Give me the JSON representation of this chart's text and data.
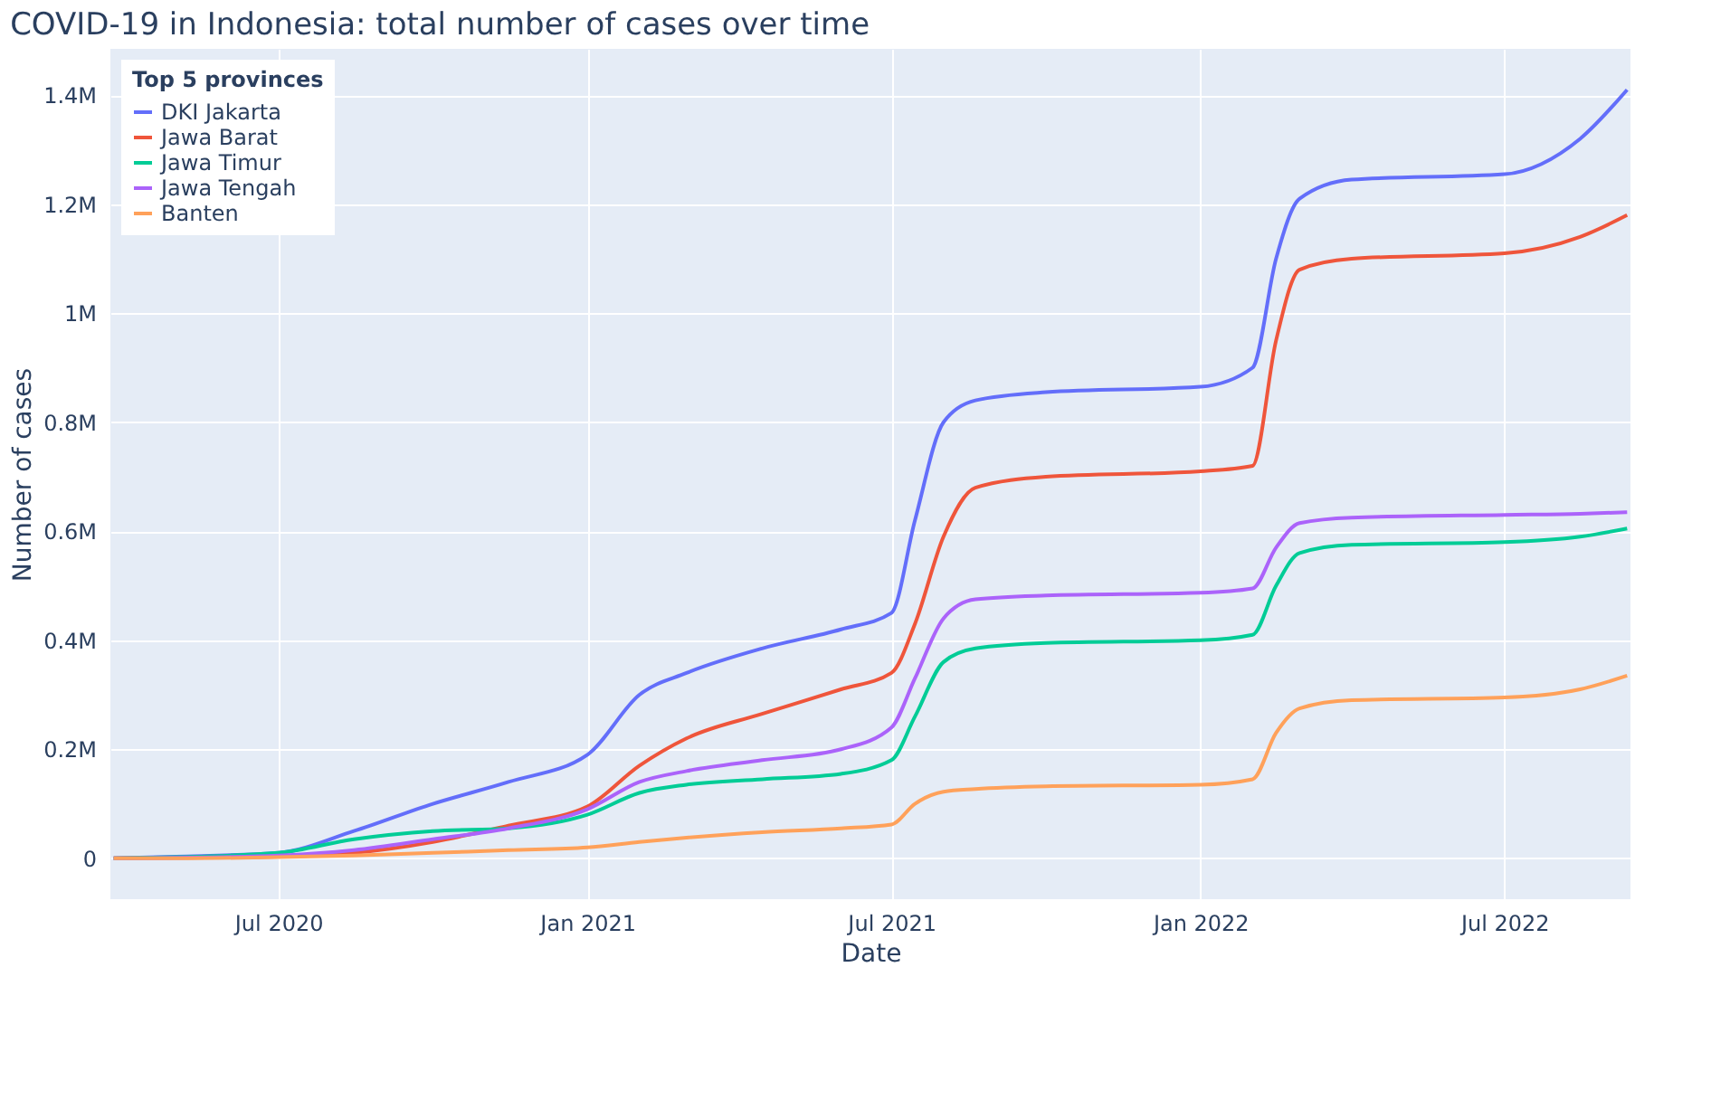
{
  "chart_data": {
    "type": "line",
    "title": "COVID-19 in Indonesia: total number of cases over time",
    "xlabel": "Date",
    "ylabel": "Number of cases",
    "legend_title": "Top 5 provinces",
    "x": [
      "2020-03-25",
      "2020-05-01",
      "2020-07-01",
      "2020-08-15",
      "2020-10-01",
      "2020-11-15",
      "2021-01-01",
      "2021-02-01",
      "2021-03-01",
      "2021-04-15",
      "2021-06-01",
      "2021-07-01",
      "2021-07-15",
      "2021-08-01",
      "2021-08-20",
      "2021-10-01",
      "2022-01-01",
      "2022-02-01",
      "2022-02-15",
      "2022-03-01",
      "2022-04-01",
      "2022-07-01",
      "2022-08-15",
      "2022-09-12"
    ],
    "series": [
      {
        "name": "DKI Jakarta",
        "color": "#636efa",
        "values": [
          0,
          3000,
          10000,
          50000,
          100000,
          140000,
          190000,
          300000,
          340000,
          385000,
          420000,
          450000,
          620000,
          800000,
          840000,
          855000,
          865000,
          900000,
          1100000,
          1210000,
          1245000,
          1255000,
          1320000,
          1410000
        ]
      },
      {
        "name": "Jawa Barat",
        "color": "#ef553b",
        "values": [
          0,
          1000,
          3000,
          10000,
          30000,
          60000,
          95000,
          170000,
          220000,
          265000,
          310000,
          340000,
          430000,
          590000,
          680000,
          700000,
          710000,
          720000,
          950000,
          1080000,
          1100000,
          1110000,
          1140000,
          1180000
        ]
      },
      {
        "name": "Jawa Timur",
        "color": "#00cc96",
        "values": [
          0,
          2000,
          10000,
          35000,
          50000,
          55000,
          80000,
          120000,
          135000,
          145000,
          155000,
          180000,
          260000,
          360000,
          385000,
          395000,
          400000,
          410000,
          500000,
          560000,
          575000,
          580000,
          590000,
          605000
        ]
      },
      {
        "name": "Jawa Tengah",
        "color": "#ab63fa",
        "values": [
          0,
          1000,
          5000,
          15000,
          35000,
          55000,
          90000,
          140000,
          160000,
          180000,
          200000,
          240000,
          330000,
          440000,
          475000,
          482000,
          487000,
          495000,
          570000,
          615000,
          625000,
          630000,
          632000,
          635000
        ]
      },
      {
        "name": "Banten",
        "color": "#ffa15a",
        "values": [
          0,
          0,
          2000,
          5000,
          10000,
          15000,
          20000,
          30000,
          38000,
          48000,
          55000,
          62000,
          100000,
          122000,
          127000,
          132000,
          135000,
          145000,
          230000,
          275000,
          290000,
          295000,
          310000,
          335000
        ]
      }
    ],
    "xlim": [
      "2020-03-23",
      "2022-09-14"
    ],
    "xticks": [
      {
        "value": "2020-07-01",
        "label": "Jul 2020"
      },
      {
        "value": "2021-01-01",
        "label": "Jan 2021"
      },
      {
        "value": "2021-07-01",
        "label": "Jul 2021"
      },
      {
        "value": "2022-01-01",
        "label": "Jan 2022"
      },
      {
        "value": "2022-07-01",
        "label": "Jul 2022"
      }
    ],
    "ylim": [
      -75000,
      1485000
    ],
    "yticks": [
      {
        "value": 0,
        "label": "0"
      },
      {
        "value": 200000,
        "label": "0.2M"
      },
      {
        "value": 400000,
        "label": "0.4M"
      },
      {
        "value": 600000,
        "label": "0.6M"
      },
      {
        "value": 800000,
        "label": "0.8M"
      },
      {
        "value": 1000000,
        "label": "1M"
      },
      {
        "value": 1200000,
        "label": "1.2M"
      },
      {
        "value": 1400000,
        "label": "1.4M"
      }
    ],
    "grid": true,
    "legend": "top left",
    "marker": "none",
    "line_style": "solid"
  }
}
